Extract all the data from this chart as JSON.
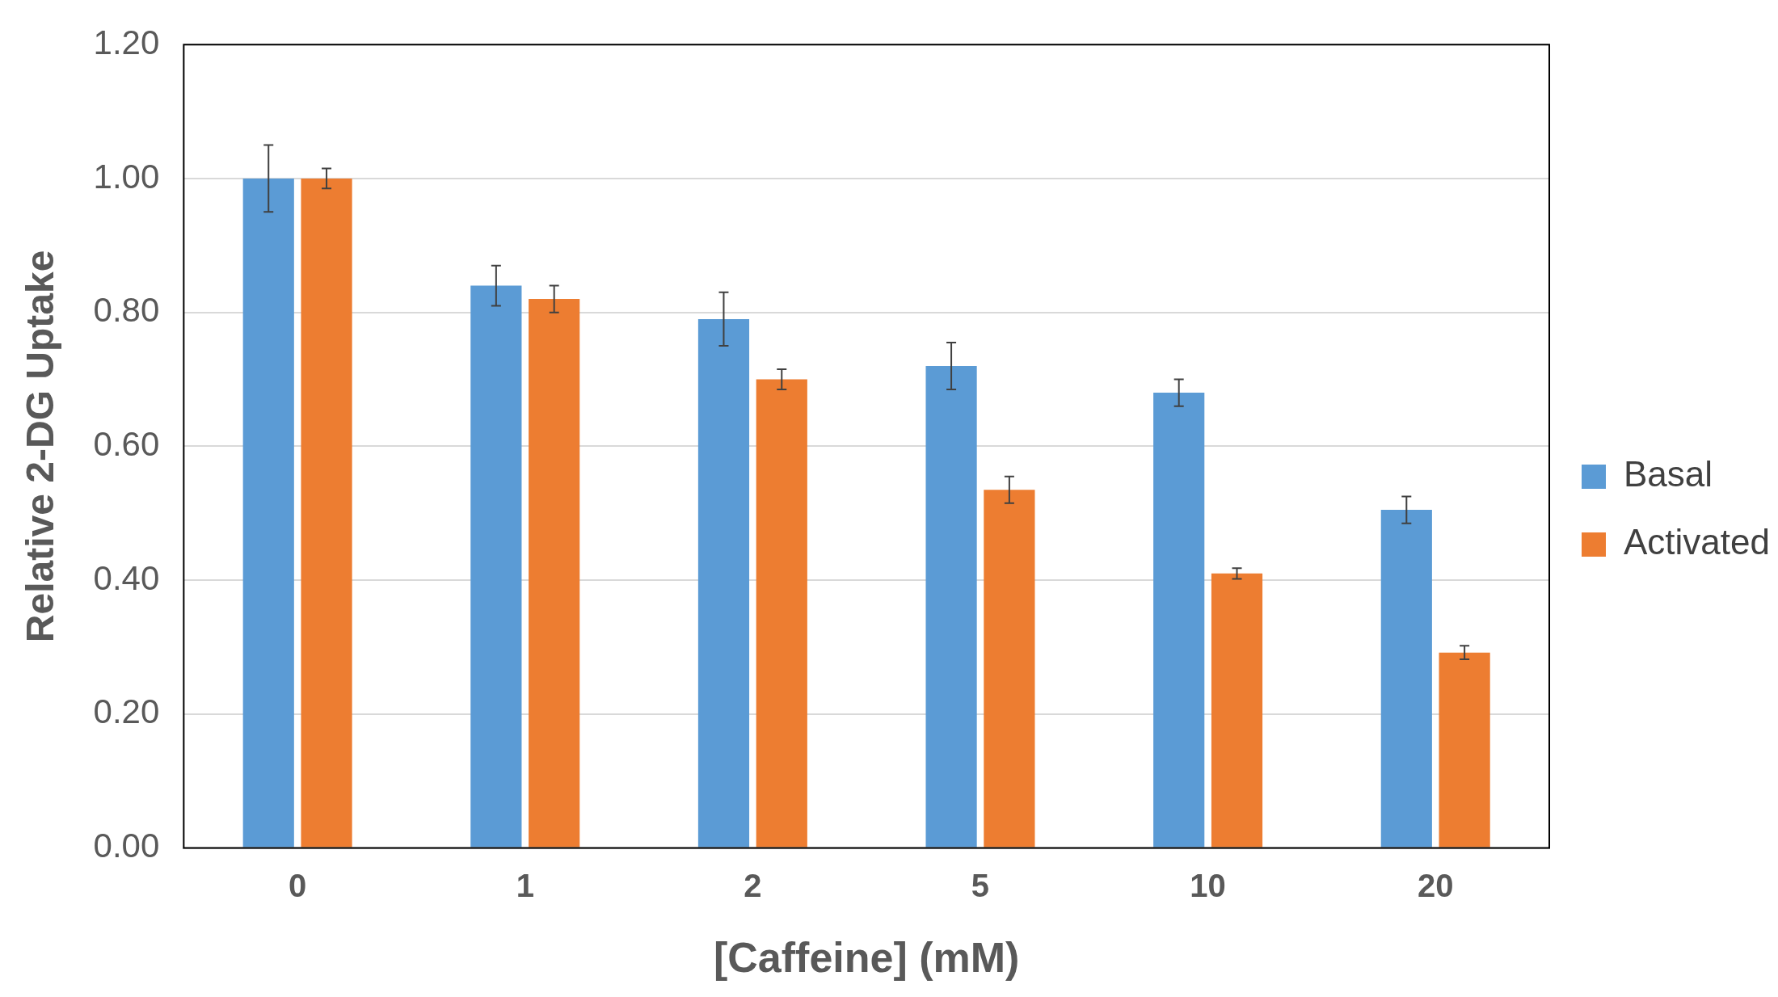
{
  "chart_data": {
    "type": "bar",
    "xlabel": "[Caffeine] (mM)",
    "ylabel": "Relative 2-DG Uptake",
    "categories": [
      "0",
      "1",
      "2",
      "5",
      "10",
      "20"
    ],
    "series": [
      {
        "name": "Basal",
        "color": "#5b9bd5",
        "values": [
          1.0,
          0.84,
          0.79,
          0.72,
          0.68,
          0.505
        ],
        "errors": [
          0.05,
          0.03,
          0.04,
          0.035,
          0.02,
          0.02
        ]
      },
      {
        "name": "Activated",
        "color": "#ed7d31",
        "values": [
          1.0,
          0.82,
          0.7,
          0.535,
          0.41,
          0.292
        ],
        "errors": [
          0.015,
          0.02,
          0.015,
          0.02,
          0.008,
          0.01
        ]
      }
    ],
    "ylim": [
      0,
      1.2
    ],
    "yticks": [
      {
        "value": 0,
        "label": "0.00"
      },
      {
        "value": 0.2,
        "label": "0.20"
      },
      {
        "value": 0.4,
        "label": "0.40"
      },
      {
        "value": 0.6,
        "label": "0.60"
      },
      {
        "value": 0.8,
        "label": "0.80"
      },
      {
        "value": 1.0,
        "label": "1.00"
      },
      {
        "value": 1.2,
        "label": "1.20"
      }
    ],
    "grid": "y",
    "legend": "right"
  }
}
